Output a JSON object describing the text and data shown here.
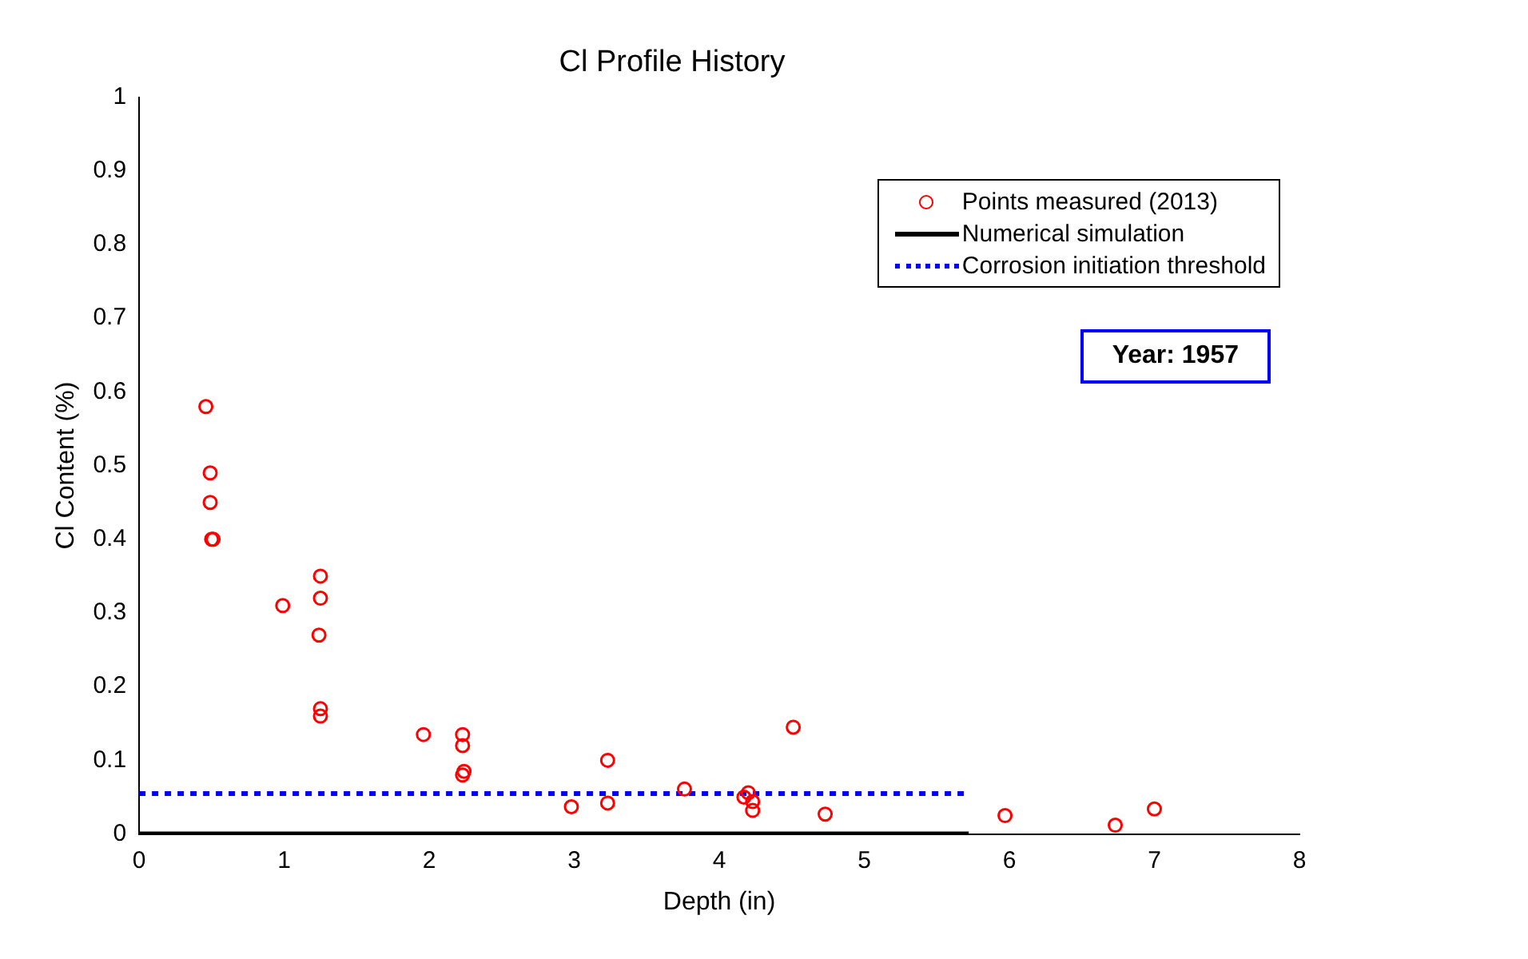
{
  "chart_data": {
    "type": "scatter",
    "title": "Cl Profile History",
    "xlabel": "Depth (in)",
    "ylabel": "Cl Content (%)",
    "xlim": [
      0,
      8
    ],
    "xticks": [
      0,
      1,
      2,
      3,
      4,
      5,
      6,
      7,
      8
    ],
    "ylim": [
      0,
      1
    ],
    "yticks": [
      0,
      0.1,
      0.2,
      0.3,
      0.4,
      0.5,
      0.6,
      0.7,
      0.8,
      0.9,
      1
    ],
    "grid": false,
    "legend": "top right",
    "marker": "circle",
    "annotations": [
      "Year: 1957"
    ],
    "series": [
      {
        "name": "Points measured (2013)",
        "type": "scatter",
        "color": "#ff0000",
        "x": [
          0.46,
          0.49,
          0.49,
          0.5,
          0.51,
          0.99,
          1.25,
          1.25,
          1.24,
          1.25,
          1.25,
          1.96,
          2.23,
          2.23,
          2.24,
          2.23,
          2.98,
          3.23,
          3.23,
          3.76,
          4.2,
          4.17,
          4.23,
          4.23,
          4.51,
          4.73,
          5.97,
          6.73,
          7.0
        ],
        "values": [
          0.58,
          0.49,
          0.45,
          0.4,
          0.4,
          0.31,
          0.35,
          0.32,
          0.27,
          0.17,
          0.16,
          0.135,
          0.135,
          0.12,
          0.085,
          0.08,
          0.037,
          0.1,
          0.042,
          0.061,
          0.056,
          0.05,
          0.044,
          0.032,
          0.145,
          0.027,
          0.025,
          0.012,
          0.034
        ]
      },
      {
        "name": "Numerical simulation",
        "type": "line",
        "color": "#000000",
        "line_style": "solid",
        "marker": "none",
        "x": [
          0,
          5.72
        ],
        "values": [
          0,
          0
        ]
      },
      {
        "name": "Corrosion initiation threshold",
        "type": "line",
        "color": "#0000ff",
        "line_style": "dotted",
        "marker": "none",
        "x": [
          0,
          5.72
        ],
        "values": [
          0.055,
          0.055
        ]
      }
    ]
  }
}
